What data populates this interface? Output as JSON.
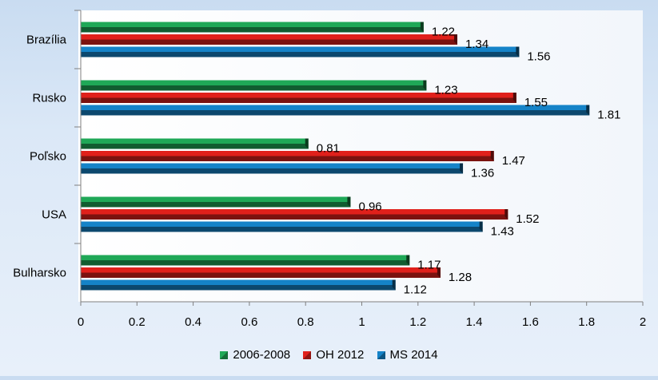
{
  "chart_data": {
    "type": "bar",
    "orientation": "horizontal",
    "categories": [
      "Brazília",
      "Rusko",
      "Poľsko",
      "USA",
      "Bulharsko"
    ],
    "series": [
      {
        "name": "2006-2008",
        "color": "#1fa857",
        "values": [
          1.22,
          1.23,
          0.81,
          0.96,
          1.17
        ]
      },
      {
        "name": "OH 2012",
        "color": "#e0201b",
        "values": [
          1.34,
          1.55,
          1.47,
          1.52,
          1.28
        ]
      },
      {
        "name": "MS 2014",
        "color": "#1583c8",
        "values": [
          1.56,
          1.81,
          1.36,
          1.43,
          1.12
        ]
      }
    ],
    "data_labels": [
      [
        "1.22",
        "1.23",
        "0.81",
        "0.96",
        "1.17"
      ],
      [
        "1.34",
        "1.55",
        "1.47",
        "1.52",
        "1.28"
      ],
      [
        "1.56",
        "1.81",
        "1.36",
        "1.43",
        "1.12"
      ]
    ],
    "x_ticks": [
      "0",
      "0.2",
      "0.4",
      "0.6",
      "0.8",
      "1",
      "1.2",
      "1.4",
      "1.6",
      "1.8",
      "2"
    ],
    "xlim": [
      0,
      2
    ],
    "grid": false,
    "legend_position": "bottom",
    "title": "",
    "xlabel": "",
    "ylabel": ""
  }
}
